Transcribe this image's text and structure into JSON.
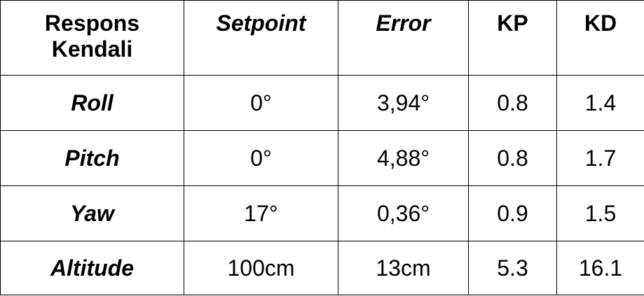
{
  "table": {
    "headers": [
      {
        "line1": "Respons",
        "line2": "Kendali"
      },
      {
        "text": "Setpoint"
      },
      {
        "text": "Error"
      },
      {
        "text": "KP"
      },
      {
        "text": "KD"
      }
    ],
    "rows": [
      {
        "label": "Roll",
        "setpoint": "0°",
        "error": "3,94°",
        "kp": "0.8",
        "kd": "1.4"
      },
      {
        "label": "Pitch",
        "setpoint": "0°",
        "error": "4,88°",
        "kp": "0.8",
        "kd": "1.7"
      },
      {
        "label": "Yaw",
        "setpoint": "17°",
        "error": "0,36°",
        "kp": "0.9",
        "kd": "1.5"
      },
      {
        "label": "Altitude",
        "setpoint": "100cm",
        "error": "13cm",
        "kp": "5.3",
        "kd": "16.1"
      }
    ]
  }
}
